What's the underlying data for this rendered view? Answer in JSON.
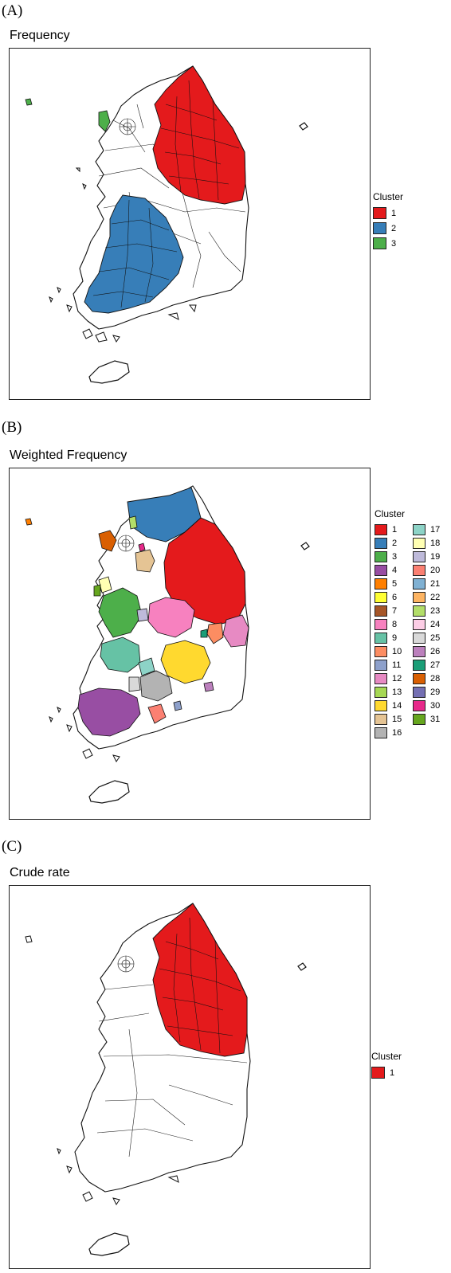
{
  "panels": [
    {
      "tag": "(A)",
      "title": "Frequency",
      "legend_title": "Cluster",
      "clusters": [
        {
          "label": "1",
          "color": "#e41a1c"
        },
        {
          "label": "2",
          "color": "#377eb8"
        },
        {
          "label": "3",
          "color": "#4daf4a"
        }
      ]
    },
    {
      "tag": "(B)",
      "title": "Weighted Frequency",
      "legend_title": "Cluster",
      "clusters": [
        {
          "label": "1",
          "color": "#e41a1c"
        },
        {
          "label": "2",
          "color": "#377eb8"
        },
        {
          "label": "3",
          "color": "#4daf4a"
        },
        {
          "label": "4",
          "color": "#984ea3"
        },
        {
          "label": "5",
          "color": "#ff7f00"
        },
        {
          "label": "6",
          "color": "#ffff33"
        },
        {
          "label": "7",
          "color": "#a65628"
        },
        {
          "label": "8",
          "color": "#f781bf"
        },
        {
          "label": "9",
          "color": "#66c2a5"
        },
        {
          "label": "10",
          "color": "#fc8d62"
        },
        {
          "label": "11",
          "color": "#8da0cb"
        },
        {
          "label": "12",
          "color": "#e78ac3"
        },
        {
          "label": "13",
          "color": "#a6d854"
        },
        {
          "label": "14",
          "color": "#ffd92f"
        },
        {
          "label": "15",
          "color": "#e5c494"
        },
        {
          "label": "16",
          "color": "#b3b3b3"
        },
        {
          "label": "17",
          "color": "#8dd3c7"
        },
        {
          "label": "18",
          "color": "#ffffb3"
        },
        {
          "label": "19",
          "color": "#bebada"
        },
        {
          "label": "20",
          "color": "#fb8072"
        },
        {
          "label": "21",
          "color": "#80b1d3"
        },
        {
          "label": "22",
          "color": "#fdb462"
        },
        {
          "label": "23",
          "color": "#b3de69"
        },
        {
          "label": "24",
          "color": "#fccde5"
        },
        {
          "label": "25",
          "color": "#d9d9d9"
        },
        {
          "label": "26",
          "color": "#bc80bd"
        },
        {
          "label": "27",
          "color": "#1b9e77"
        },
        {
          "label": "28",
          "color": "#d95f02"
        },
        {
          "label": "29",
          "color": "#7570b3"
        },
        {
          "label": "30",
          "color": "#e7298a"
        },
        {
          "label": "31",
          "color": "#66a61e"
        }
      ]
    },
    {
      "tag": "(C)",
      "title": "Crude rate",
      "legend_title": "Cluster",
      "clusters": [
        {
          "label": "1",
          "color": "#e41a1c"
        }
      ]
    }
  ]
}
